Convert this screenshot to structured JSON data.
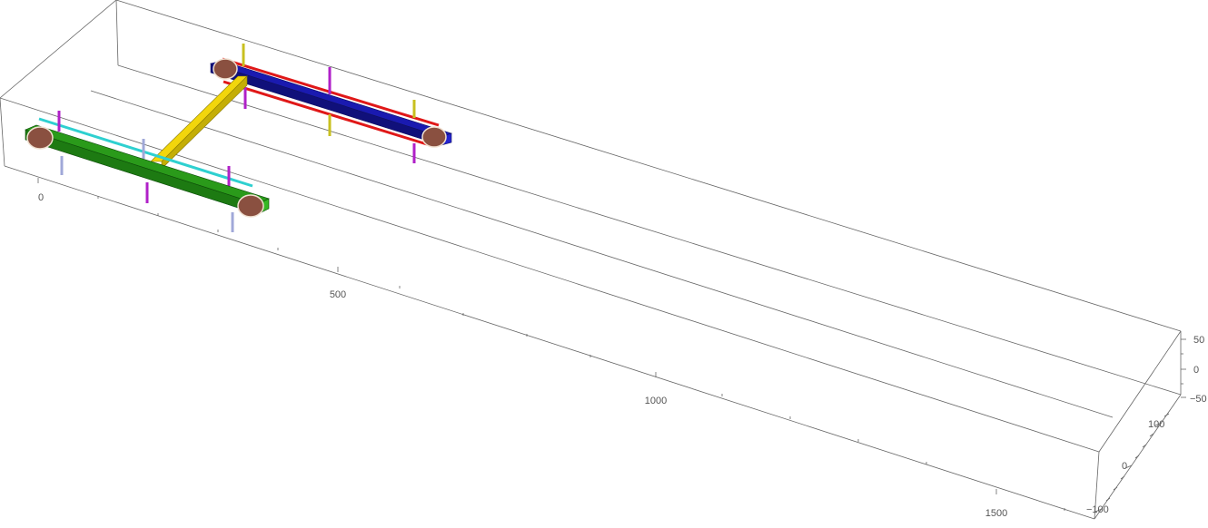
{
  "plot": {
    "type": "3d-graphics",
    "box": true
  },
  "axes": {
    "x_ticks": [
      "0",
      "500",
      "1000",
      "1500"
    ],
    "z_ticks": [
      "50",
      "0",
      "−50"
    ],
    "y_ticks": [
      "100",
      "0",
      "−100"
    ]
  },
  "colors": {
    "box_edge": "#666666",
    "tick_label": "#555555",
    "axle_front": "#2a9a1a",
    "axle_rear": "#1a1ab0",
    "link_bar": "#f2d60c",
    "rail_front": "#2ed0d0",
    "rail_rear": "#e01818",
    "wheel": "#8a5040",
    "post_magenta": "#b020c8",
    "post_lavender": "#a0a8d8",
    "post_yellow": "#c8c020"
  }
}
